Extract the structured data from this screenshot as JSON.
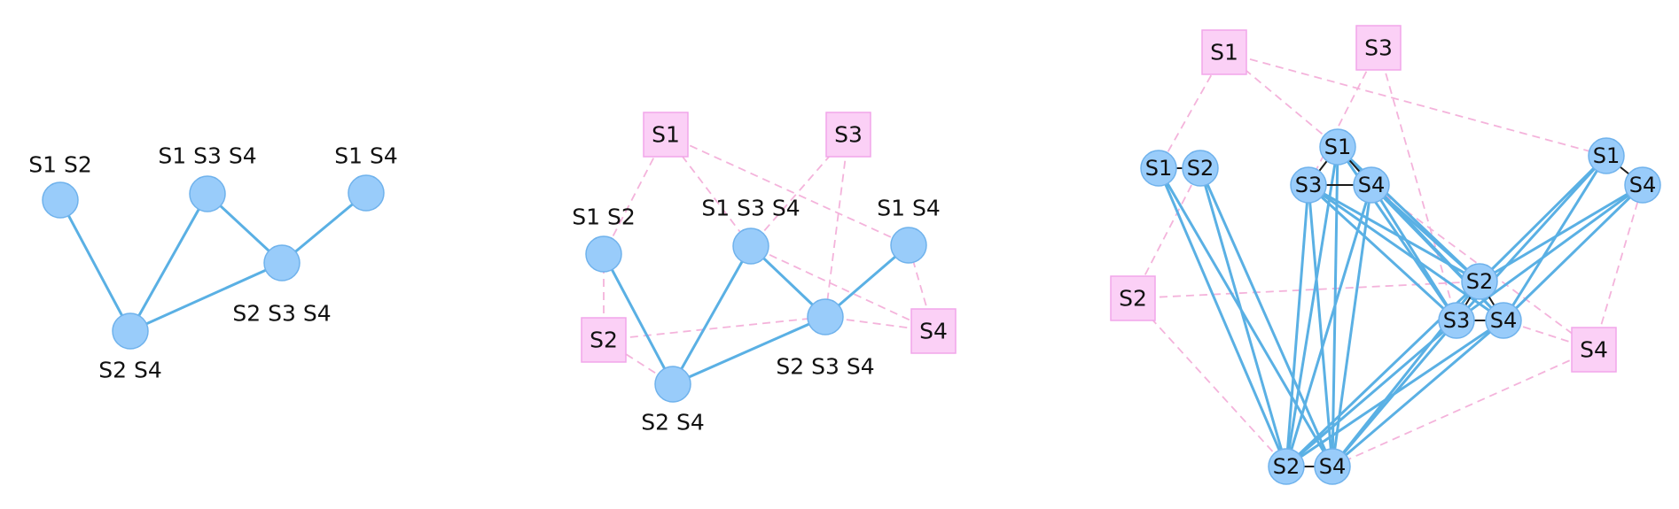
{
  "colors": {
    "node_fill": "#99ccfa",
    "node_stroke": "#6fb2ec",
    "edge": "#5ab0e4",
    "square_fill": "#fbd0f6",
    "square_stroke": "#f2a6ea",
    "dashed": "#f4b3db",
    "inner_edge": "#1b1b1b",
    "text": "#111111"
  },
  "panels": [
    {
      "id": "simplicial-complex",
      "nodes": [
        {
          "id": "a",
          "label": "S1 S2"
        },
        {
          "id": "b",
          "label": "S1 S3 S4"
        },
        {
          "id": "c",
          "label": "S1 S4"
        },
        {
          "id": "d",
          "label": "S2 S3 S4"
        },
        {
          "id": "e",
          "label": "S2 S4"
        }
      ]
    },
    {
      "id": "with-simplex-nodes",
      "nodes": [
        {
          "id": "a",
          "label": "S1 S2"
        },
        {
          "id": "b",
          "label": "S1 S3 S4"
        },
        {
          "id": "c",
          "label": "S1 S4"
        },
        {
          "id": "d",
          "label": "S2 S3 S4"
        },
        {
          "id": "e",
          "label": "S2 S4"
        }
      ],
      "squares": [
        {
          "id": "s1",
          "label": "S1"
        },
        {
          "id": "s2",
          "label": "S2"
        },
        {
          "id": "s3",
          "label": "S3"
        },
        {
          "id": "s4",
          "label": "S4"
        }
      ]
    },
    {
      "id": "expanded",
      "squares": [
        {
          "id": "s1",
          "label": "S1"
        },
        {
          "id": "s2",
          "label": "S2"
        },
        {
          "id": "s3",
          "label": "S3"
        },
        {
          "id": "s4",
          "label": "S4"
        }
      ],
      "nodes": [
        {
          "id": "a1",
          "label": "S1"
        },
        {
          "id": "a2",
          "label": "S2"
        },
        {
          "id": "b1",
          "label": "S1"
        },
        {
          "id": "b3",
          "label": "S3"
        },
        {
          "id": "b4",
          "label": "S4"
        },
        {
          "id": "c1",
          "label": "S1"
        },
        {
          "id": "c4",
          "label": "S4"
        },
        {
          "id": "d2",
          "label": "S2"
        },
        {
          "id": "d3",
          "label": "S3"
        },
        {
          "id": "d4",
          "label": "S4"
        },
        {
          "id": "e2",
          "label": "S2"
        },
        {
          "id": "e4",
          "label": "S4"
        }
      ]
    }
  ]
}
